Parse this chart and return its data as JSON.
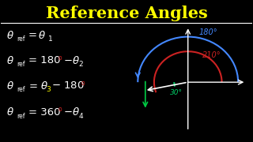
{
  "bg_color": "#000000",
  "title": "Reference Angles",
  "title_color": "#ffff00",
  "title_fontsize": 15,
  "line_color": "#ffffff",
  "arc_180_color": "#4488ff",
  "arc_210_color": "#cc2222",
  "angle_30_color": "#00cc66",
  "ray_color": "#ffffff",
  "label_180": "180°",
  "label_210": "210°",
  "label_30": "30°",
  "arrow_color_green": "#00cc44",
  "formula_color": "#ffffff",
  "degree_color": "#cc2222",
  "sub3_color": "#ffff00"
}
